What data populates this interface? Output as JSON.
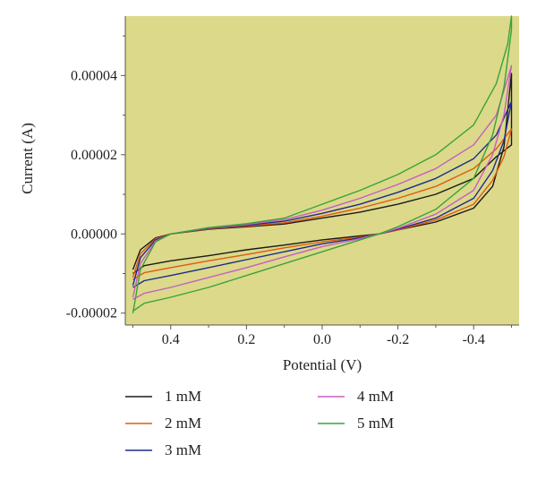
{
  "chart_data": {
    "type": "line",
    "title": "",
    "xlabel": "Potential (V)",
    "ylabel": "Current (A)",
    "xlim": [
      0.52,
      -0.52
    ],
    "ylim": [
      -2.3e-05,
      5.5e-05
    ],
    "x_reversed": true,
    "grid": false,
    "plot_background": "#dcd98a",
    "x_ticks": [
      {
        "value": 0.4,
        "label": "0.4"
      },
      {
        "value": 0.2,
        "label": "0.2"
      },
      {
        "value": 0.0,
        "label": "0.0"
      },
      {
        "value": -0.2,
        "label": "-0.2"
      },
      {
        "value": -0.4,
        "label": "-0.4"
      }
    ],
    "y_ticks": [
      {
        "value": 4e-05,
        "label": "0.00004"
      },
      {
        "value": 2e-05,
        "label": "0.00002"
      },
      {
        "value": 0.0,
        "label": "0.00000"
      },
      {
        "value": -2e-05,
        "label": "-0.00002"
      }
    ],
    "legend_position": "bottom",
    "series": [
      {
        "name": "1 mM",
        "color": "#1a1a1a",
        "points": [
          [
            0.5,
            -9e-06
          ],
          [
            0.48,
            -4e-06
          ],
          [
            0.44,
            -1e-06
          ],
          [
            0.4,
            0.0
          ],
          [
            0.3,
            1.2e-06
          ],
          [
            0.2,
            1.8e-06
          ],
          [
            0.1,
            2.5e-06
          ],
          [
            0.0,
            4e-06
          ],
          [
            -0.1,
            5.5e-06
          ],
          [
            -0.2,
            7.5e-06
          ],
          [
            -0.3,
            1e-05
          ],
          [
            -0.4,
            1.4e-05
          ],
          [
            -0.46,
            1.95e-05
          ],
          [
            -0.5,
            2.25e-05
          ],
          [
            -0.5,
            4.05e-05
          ],
          [
            -0.48,
            2.2e-05
          ],
          [
            -0.45,
            1.2e-05
          ],
          [
            -0.4,
            6.5e-06
          ],
          [
            -0.3,
            3e-06
          ],
          [
            -0.2,
            1e-06
          ],
          [
            -0.15,
            0.0
          ],
          [
            -0.1,
            -5e-07
          ],
          [
            0.0,
            -1.5e-06
          ],
          [
            0.1,
            -2.8e-06
          ],
          [
            0.2,
            -4e-06
          ],
          [
            0.3,
            -5.5e-06
          ],
          [
            0.4,
            -6.8e-06
          ],
          [
            0.47,
            -8e-06
          ],
          [
            0.5,
            -1e-05
          ]
        ]
      },
      {
        "name": "2 mM",
        "color": "#e05a10",
        "points": [
          [
            0.5,
            -1.1e-05
          ],
          [
            0.48,
            -5e-06
          ],
          [
            0.44,
            -1.2e-06
          ],
          [
            0.4,
            0.0
          ],
          [
            0.3,
            1.3e-06
          ],
          [
            0.2,
            2e-06
          ],
          [
            0.1,
            2.8e-06
          ],
          [
            0.0,
            4.5e-06
          ],
          [
            -0.1,
            6.5e-06
          ],
          [
            -0.2,
            9e-06
          ],
          [
            -0.3,
            1.2e-05
          ],
          [
            -0.4,
            1.65e-05
          ],
          [
            -0.46,
            2.15e-05
          ],
          [
            -0.5,
            2.65e-05
          ],
          [
            -0.5,
            2.65e-05
          ],
          [
            -0.48,
            1.95e-05
          ],
          [
            -0.45,
            1.35e-05
          ],
          [
            -0.4,
            7.5e-06
          ],
          [
            -0.3,
            3.5e-06
          ],
          [
            -0.2,
            1e-06
          ],
          [
            -0.15,
            0.0
          ],
          [
            -0.1,
            -8e-07
          ],
          [
            0.0,
            -2e-06
          ],
          [
            0.1,
            -3.5e-06
          ],
          [
            0.2,
            -5.2e-06
          ],
          [
            0.3,
            -6.8e-06
          ],
          [
            0.4,
            -8.5e-06
          ],
          [
            0.47,
            -9.8e-06
          ],
          [
            0.5,
            -1.15e-05
          ]
        ]
      },
      {
        "name": "3 mM",
        "color": "#1f2a8c",
        "points": [
          [
            0.5,
            -1.3e-05
          ],
          [
            0.48,
            -6e-06
          ],
          [
            0.44,
            -1.5e-06
          ],
          [
            0.4,
            0.0
          ],
          [
            0.3,
            1.4e-06
          ],
          [
            0.2,
            2.2e-06
          ],
          [
            0.1,
            3.2e-06
          ],
          [
            0.0,
            5.2e-06
          ],
          [
            -0.1,
            7.5e-06
          ],
          [
            -0.2,
            1.05e-05
          ],
          [
            -0.3,
            1.4e-05
          ],
          [
            -0.4,
            1.9e-05
          ],
          [
            -0.46,
            2.5e-05
          ],
          [
            -0.5,
            3.35e-05
          ],
          [
            -0.5,
            3.35e-05
          ],
          [
            -0.48,
            2.35e-05
          ],
          [
            -0.45,
            1.6e-05
          ],
          [
            -0.4,
            9e-06
          ],
          [
            -0.3,
            4e-06
          ],
          [
            -0.2,
            1.2e-06
          ],
          [
            -0.15,
            0.0
          ],
          [
            -0.1,
            -1e-06
          ],
          [
            0.0,
            -2.5e-06
          ],
          [
            0.1,
            -4.5e-06
          ],
          [
            0.2,
            -6.5e-06
          ],
          [
            0.3,
            -8.5e-06
          ],
          [
            0.4,
            -1.05e-05
          ],
          [
            0.47,
            -1.18e-05
          ],
          [
            0.5,
            -1.35e-05
          ]
        ]
      },
      {
        "name": "4 mM",
        "color": "#c45ec4",
        "points": [
          [
            0.5,
            -1.6e-05
          ],
          [
            0.48,
            -7.5e-06
          ],
          [
            0.44,
            -1.8e-06
          ],
          [
            0.4,
            0.0
          ],
          [
            0.3,
            1.5e-06
          ],
          [
            0.2,
            2.4e-06
          ],
          [
            0.1,
            3.6e-06
          ],
          [
            0.0,
            6e-06
          ],
          [
            -0.1,
            9e-06
          ],
          [
            -0.2,
            1.25e-05
          ],
          [
            -0.3,
            1.65e-05
          ],
          [
            -0.4,
            2.25e-05
          ],
          [
            -0.46,
            3e-05
          ],
          [
            -0.5,
            4.25e-05
          ],
          [
            -0.5,
            4.25e-05
          ],
          [
            -0.48,
            3e-05
          ],
          [
            -0.45,
            2e-05
          ],
          [
            -0.4,
            1.1e-05
          ],
          [
            -0.3,
            5e-06
          ],
          [
            -0.2,
            1.4e-06
          ],
          [
            -0.15,
            0.0
          ],
          [
            -0.1,
            -1.2e-06
          ],
          [
            0.0,
            -3.2e-06
          ],
          [
            0.1,
            -5.8e-06
          ],
          [
            0.2,
            -8.5e-06
          ],
          [
            0.3,
            -1.1e-05
          ],
          [
            0.4,
            -1.35e-05
          ],
          [
            0.47,
            -1.5e-05
          ],
          [
            0.5,
            -1.65e-05
          ]
        ]
      },
      {
        "name": "5 mM",
        "color": "#3aa33a",
        "points": [
          [
            0.5,
            -2e-05
          ],
          [
            0.48,
            -9e-06
          ],
          [
            0.44,
            -2e-06
          ],
          [
            0.4,
            0.0
          ],
          [
            0.3,
            1.6e-06
          ],
          [
            0.2,
            2.6e-06
          ],
          [
            0.1,
            4e-06
          ],
          [
            0.0,
            7.5e-06
          ],
          [
            -0.1,
            1.1e-05
          ],
          [
            -0.2,
            1.5e-05
          ],
          [
            -0.3,
            2e-05
          ],
          [
            -0.4,
            2.75e-05
          ],
          [
            -0.46,
            3.8e-05
          ],
          [
            -0.49,
            4.8e-05
          ],
          [
            -0.5,
            5.5e-05
          ],
          [
            -0.5,
            5.15e-05
          ],
          [
            -0.48,
            3.7e-05
          ],
          [
            -0.45,
            2.5e-05
          ],
          [
            -0.4,
            1.4e-05
          ],
          [
            -0.3,
            6.2e-06
          ],
          [
            -0.2,
            1.8e-06
          ],
          [
            -0.15,
            0.0
          ],
          [
            -0.1,
            -1.5e-06
          ],
          [
            0.0,
            -4.5e-06
          ],
          [
            0.1,
            -7.5e-06
          ],
          [
            0.2,
            -1.05e-05
          ],
          [
            0.3,
            -1.35e-05
          ],
          [
            0.4,
            -1.6e-05
          ],
          [
            0.47,
            -1.75e-05
          ],
          [
            0.5,
            -1.95e-05
          ]
        ]
      }
    ]
  }
}
